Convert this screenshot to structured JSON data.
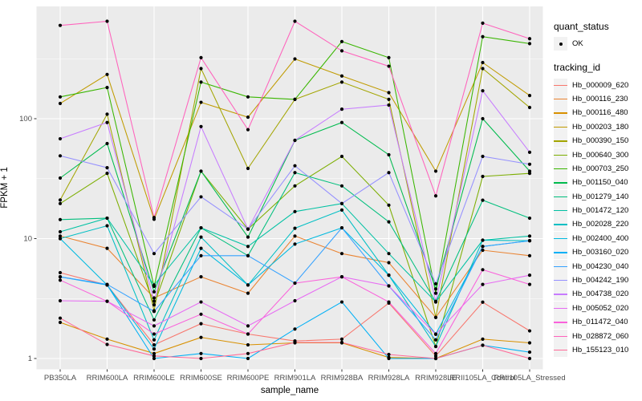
{
  "chart_data": {
    "type": "line",
    "xlabel": "sample_name",
    "ylabel": "FPKM + 1",
    "y_scale": "log10",
    "y_ticks": [
      1,
      10,
      100
    ],
    "y_minor_ticks": [
      3.162,
      31.62,
      316.2
    ],
    "ylim": [
      0.95,
      900
    ],
    "grid": true,
    "legend_position": "right",
    "panel_bg": "#EBEBEB",
    "grid_color": "#FFFFFF",
    "marker_color": "#000000",
    "tick_text_color": "#4D4D4D",
    "quant_status_title": "quant_status",
    "quant_status_value": "OK",
    "legend_title": "tracking_id",
    "x_categories": [
      "PB350LA",
      "RRIM600LA",
      "RRIM600LE",
      "RRIM600SE",
      "RRIM600PE",
      "RRIM901LA",
      "RRIM928BA",
      "RRIM928LA",
      "RRIM928LE",
      "RRII105LA_Control",
      "RRII105LA_Stressed"
    ],
    "series": [
      {
        "name": "Hb_000009_620",
        "color": "#F8766D",
        "values": [
          5.2,
          4.1,
          1.3,
          1.95,
          1.6,
          1.4,
          1.45,
          2.9,
          1.05,
          2.95,
          1.7
        ]
      },
      {
        "name": "Hb_000116_230",
        "color": "#EA8331",
        "values": [
          10.5,
          8.3,
          3.2,
          4.8,
          3.5,
          10.5,
          7.5,
          6.3,
          2.2,
          8.0,
          7.2
        ]
      },
      {
        "name": "Hb_000116_480",
        "color": "#D89000",
        "values": [
          2.0,
          1.45,
          1.1,
          1.5,
          1.3,
          1.35,
          1.35,
          1.02,
          1.0,
          1.45,
          1.35
        ]
      },
      {
        "name": "Hb_000203_180",
        "color": "#C09B00",
        "values": [
          134,
          234,
          14.5,
          137,
          103,
          315,
          227,
          165,
          36.5,
          294,
          156
        ]
      },
      {
        "name": "Hb_000390_150",
        "color": "#A3A500",
        "values": [
          21,
          109,
          2.5,
          262,
          38.5,
          145,
          202,
          145,
          2.2,
          262,
          124
        ]
      },
      {
        "name": "Hb_000640_300",
        "color": "#7CAE00",
        "values": [
          19.6,
          35,
          2.8,
          36.5,
          12,
          27.5,
          48.5,
          19,
          1.26,
          33,
          35
        ]
      },
      {
        "name": "Hb_000703_250",
        "color": "#39B600",
        "values": [
          152,
          182,
          4.0,
          202,
          152,
          145,
          440,
          323,
          3.5,
          483,
          423
        ]
      },
      {
        "name": "Hb_001150_040",
        "color": "#00BB4E",
        "values": [
          32,
          62,
          3.6,
          36.5,
          10.3,
          66,
          93,
          50,
          3.8,
          100,
          36.5
        ]
      },
      {
        "name": "Hb_001279_140",
        "color": "#00BF7D",
        "values": [
          14.4,
          14.8,
          2.1,
          12.3,
          7.2,
          35.5,
          27.5,
          13.8,
          2.96,
          20.9,
          14.8
        ]
      },
      {
        "name": "Hb_001472_120",
        "color": "#00C1A3",
        "values": [
          11.4,
          14.8,
          4.1,
          12.3,
          8.6,
          16.8,
          19.6,
          7.5,
          2.96,
          9.7,
          10.5
        ]
      },
      {
        "name": "Hb_002028_220",
        "color": "#00BFC4",
        "values": [
          10,
          12.8,
          1.43,
          10.3,
          4.1,
          12.2,
          17.3,
          4.95,
          1.26,
          9.7,
          9.6
        ]
      },
      {
        "name": "Hb_002400_400",
        "color": "#00BAE0",
        "values": [
          10,
          4.1,
          1.2,
          8.3,
          4.1,
          9.0,
          12.3,
          4.95,
          1.6,
          8.6,
          9.6
        ]
      },
      {
        "name": "Hb_003160_020",
        "color": "#00B0F6",
        "values": [
          4.8,
          4.1,
          1.0,
          1.1,
          1.0,
          1.76,
          2.96,
          1.0,
          1.0,
          1.29,
          1.13
        ]
      },
      {
        "name": "Hb_004230_040",
        "color": "#35A2FF",
        "values": [
          4.8,
          4.15,
          2.47,
          7.2,
          7.2,
          4.25,
          12.3,
          4.03,
          1.43,
          8.6,
          9.6
        ]
      },
      {
        "name": "Hb_004242_190",
        "color": "#9590FF",
        "values": [
          49,
          39,
          7.5,
          22.3,
          12,
          40.5,
          19.6,
          35.5,
          4.2,
          48.5,
          41.7
        ]
      },
      {
        "name": "Hb_004738_020",
        "color": "#C77CFF",
        "values": [
          68,
          93,
          3.0,
          86,
          12,
          66,
          120,
          130,
          3.0,
          171,
          52.5
        ]
      },
      {
        "name": "Hb_005052_020",
        "color": "#E76BF3",
        "values": [
          3.03,
          3.0,
          1.87,
          2.96,
          1.87,
          3.03,
          4.8,
          4.03,
          1.59,
          4.15,
          4.95
        ]
      },
      {
        "name": "Hb_011472_040",
        "color": "#FA62DB",
        "values": [
          4.5,
          3.0,
          1.6,
          2.34,
          1.6,
          4.25,
          4.8,
          2.96,
          1.1,
          5.5,
          4.15
        ]
      },
      {
        "name": "Hb_028872_060",
        "color": "#FF62BC",
        "values": [
          600,
          650,
          15,
          323,
          81,
          650,
          368,
          274,
          22.7,
          626,
          465
        ]
      },
      {
        "name": "Hb_155123_010",
        "color": "#FF6A98",
        "values": [
          2.17,
          1.31,
          1.05,
          1.0,
          1.1,
          1.36,
          1.36,
          1.08,
          1.0,
          1.29,
          1.0
        ]
      }
    ]
  }
}
